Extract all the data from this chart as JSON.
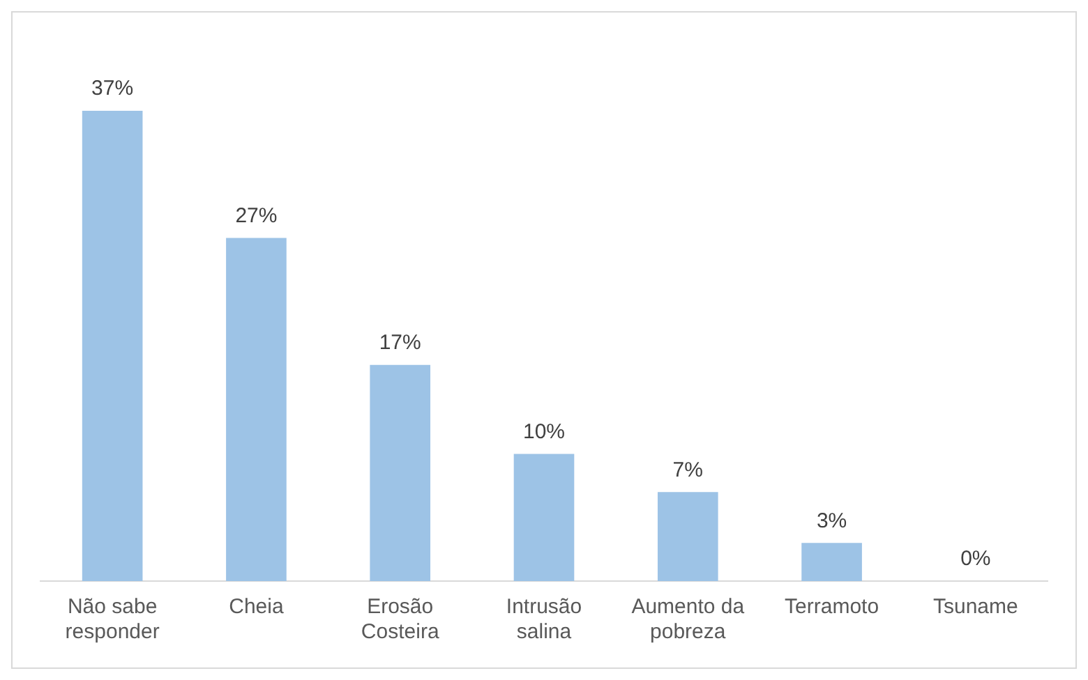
{
  "chart_data": {
    "type": "bar",
    "categories": [
      "Não sabe responder",
      "Cheia",
      "Erosão Costeira",
      "Intrusão salina",
      "Aumento da pobreza",
      "Terramoto",
      "Tsuname"
    ],
    "values": [
      37,
      27,
      17,
      10,
      7,
      3,
      0
    ],
    "value_labels": [
      "37%",
      "27%",
      "17%",
      "10%",
      "7%",
      "3%",
      "0%"
    ],
    "color": "#9dc3e6",
    "grid": false,
    "legend": false
  }
}
